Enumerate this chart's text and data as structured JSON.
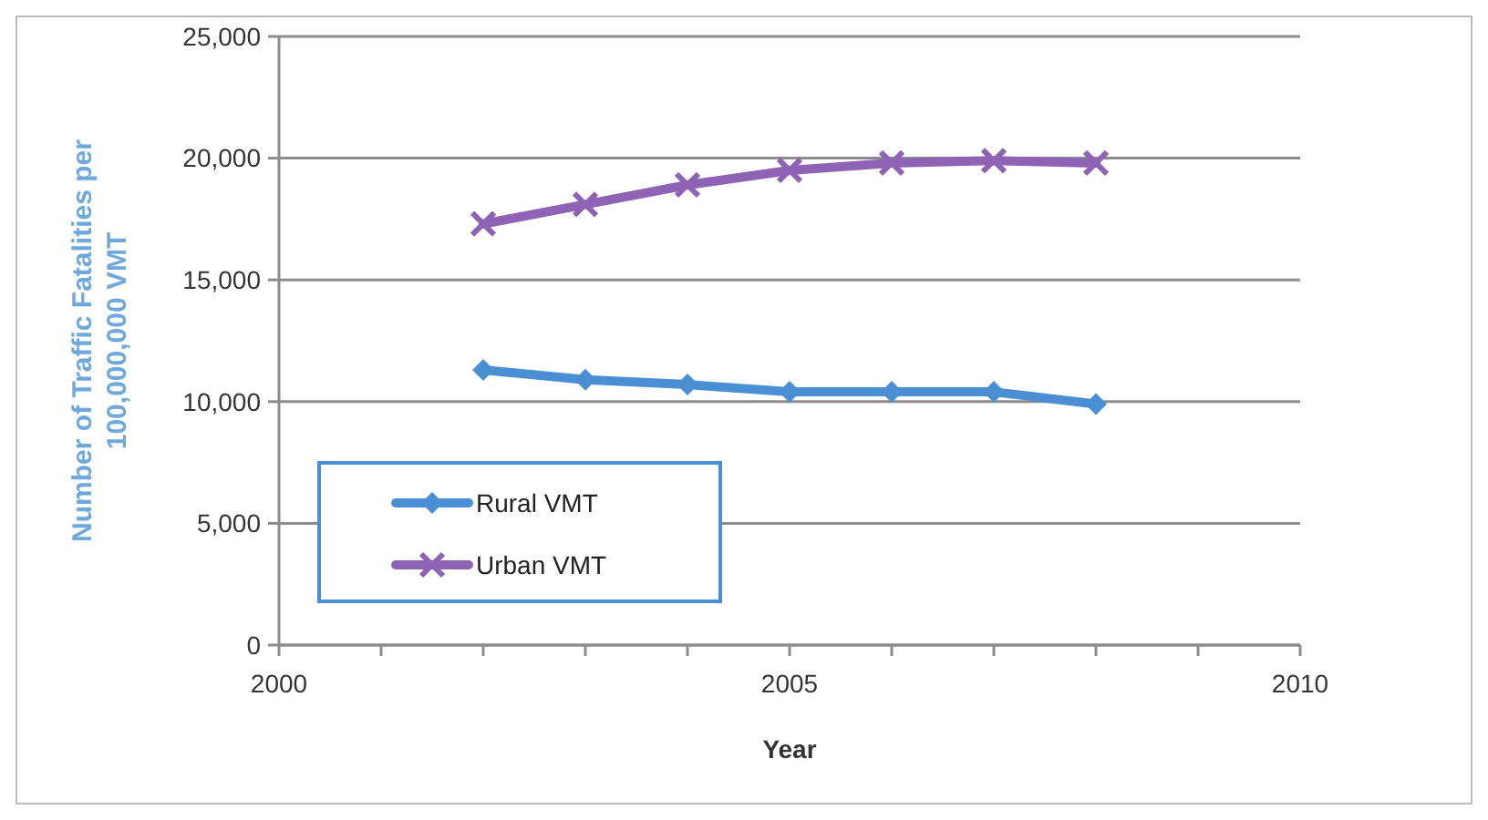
{
  "chart_data": {
    "type": "line",
    "xlabel": "Year",
    "ylabel": "Number of Traffic Fatalities per 100,000,000 VMT",
    "x": [
      2002,
      2003,
      2004,
      2005,
      2006,
      2007,
      2008
    ],
    "series": [
      {
        "name": "Rural VMT",
        "color": "#4a8fd4",
        "marker": "diamond",
        "values": [
          11300,
          10900,
          10700,
          10400,
          10400,
          10400,
          9900
        ]
      },
      {
        "name": "Urban VMT",
        "color": "#8e62b4",
        "marker": "cross",
        "values": [
          17300,
          18100,
          18900,
          19500,
          19800,
          19900,
          19800
        ]
      }
    ],
    "xlim": [
      2000,
      2010
    ],
    "xticks": [
      2000,
      {
        "value": 2001,
        "label": null
      },
      {
        "value": 2002,
        "label": null
      },
      {
        "value": 2003,
        "label": null
      },
      {
        "value": 2004,
        "label": null
      },
      2005,
      {
        "value": 2006,
        "label": null
      },
      {
        "value": 2007,
        "label": null
      },
      {
        "value": 2008,
        "label": null
      },
      {
        "value": 2009,
        "label": null
      },
      2010
    ],
    "ylim": [
      0,
      25000
    ],
    "yticks": [
      {
        "value": 0,
        "label": "0"
      },
      {
        "value": 5000,
        "label": "5,000"
      },
      {
        "value": 10000,
        "label": "10,000"
      },
      {
        "value": 15000,
        "label": "15,000"
      },
      {
        "value": 20000,
        "label": "20,000"
      },
      {
        "value": 25000,
        "label": "25,000"
      }
    ],
    "grid": "y",
    "legend": "bottom left",
    "line_style": "solid"
  }
}
